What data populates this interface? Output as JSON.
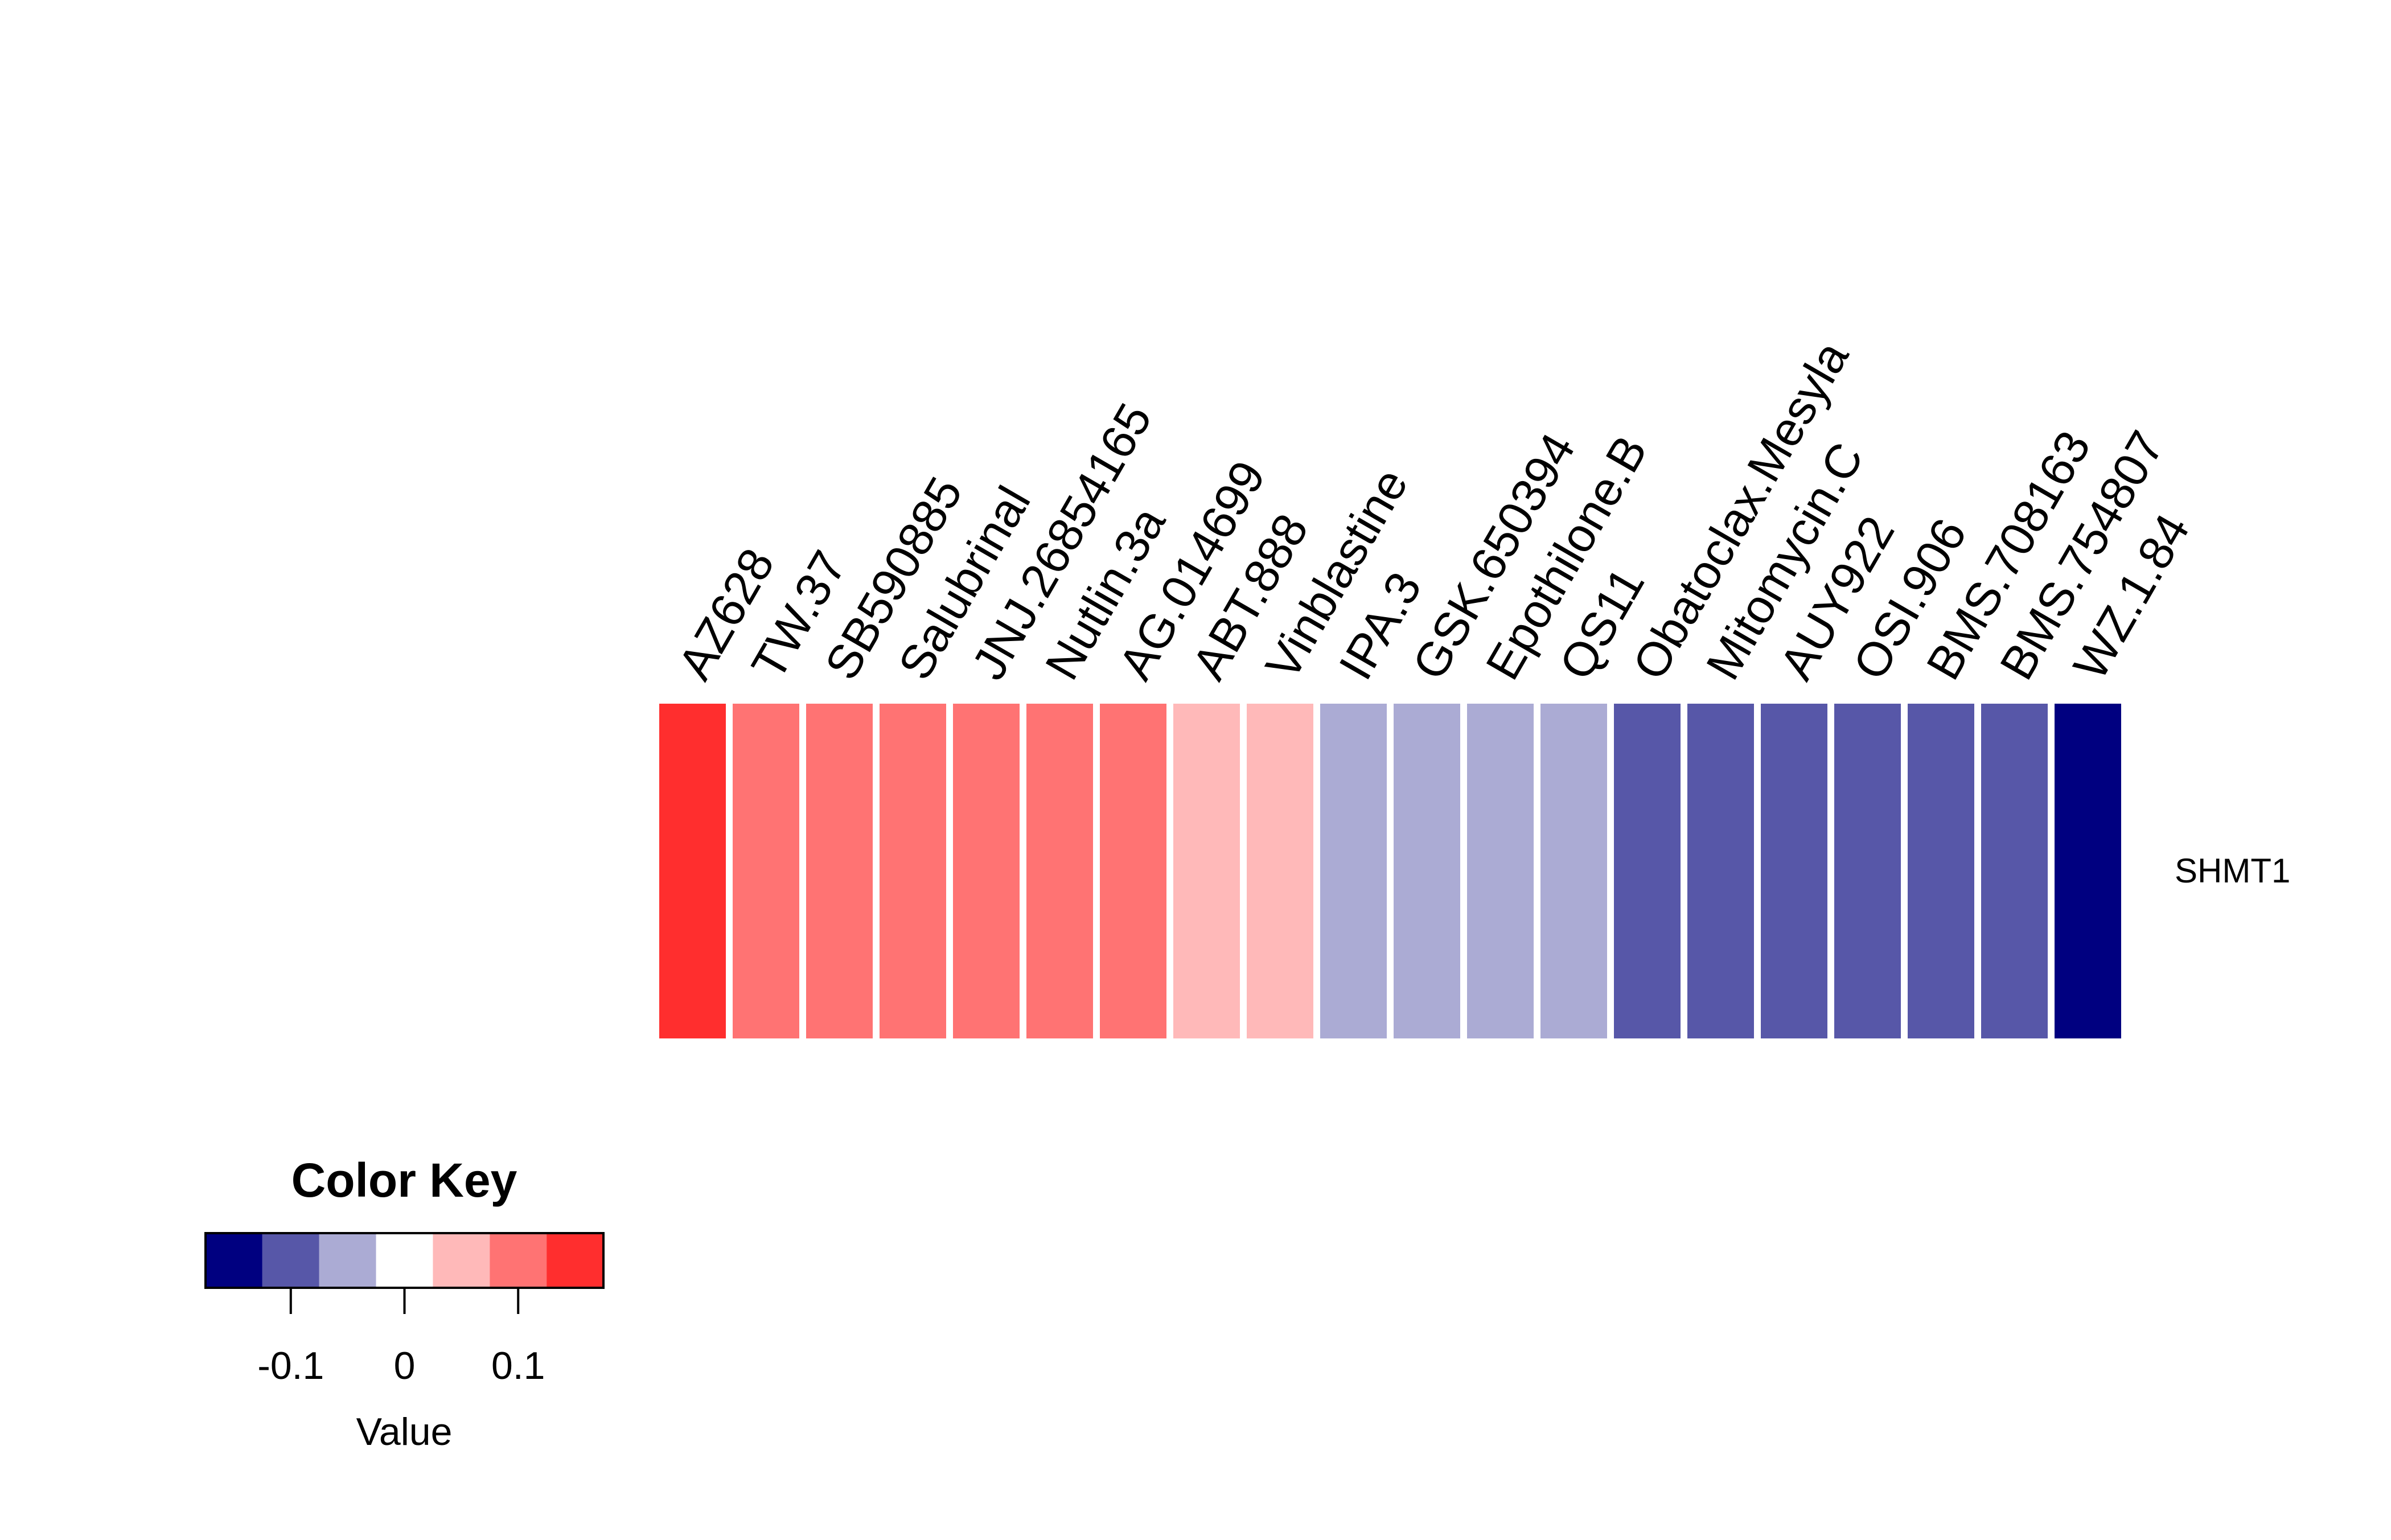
{
  "chart_data": {
    "type": "heatmap",
    "rows": [
      "SHMT1"
    ],
    "columns": [
      "AZ628",
      "TW.37",
      "SB590885",
      "Salubrinal",
      "JNJ.26854165",
      "Nutlin.3a",
      "AG.014699",
      "ABT.888",
      "Vinblastine",
      "IPA.3",
      "GSK.650394",
      "Epothilone.B",
      "QS11",
      "Obatoclax.Mesyla",
      "Mitomycin.C",
      "AUY922",
      "OSI.906",
      "BMS.708163",
      "BMS.754807",
      "WZ.1.84"
    ],
    "values": [
      [
        0.15,
        0.1,
        0.1,
        0.1,
        0.1,
        0.1,
        0.1,
        0.05,
        0.05,
        -0.05,
        -0.05,
        -0.05,
        -0.05,
        -0.1,
        -0.1,
        -0.1,
        -0.1,
        -0.1,
        -0.1,
        -0.15
      ]
    ],
    "color_key": {
      "title": "Color Key",
      "xlabel": "Value",
      "range": [
        -0.175,
        0.175
      ],
      "breaks": [
        -0.175,
        -0.125,
        -0.075,
        -0.025,
        0.025,
        0.075,
        0.125,
        0.175
      ],
      "colors": [
        "#000080",
        "#5757A8",
        "#ABABD4",
        "#FFFFFF",
        "#FFB9B9",
        "#FF7373",
        "#FF2E2E"
      ],
      "ticks": [
        -0.1,
        0,
        0.1
      ],
      "tick_labels": [
        "-0.1",
        "0",
        "0.1"
      ]
    }
  }
}
